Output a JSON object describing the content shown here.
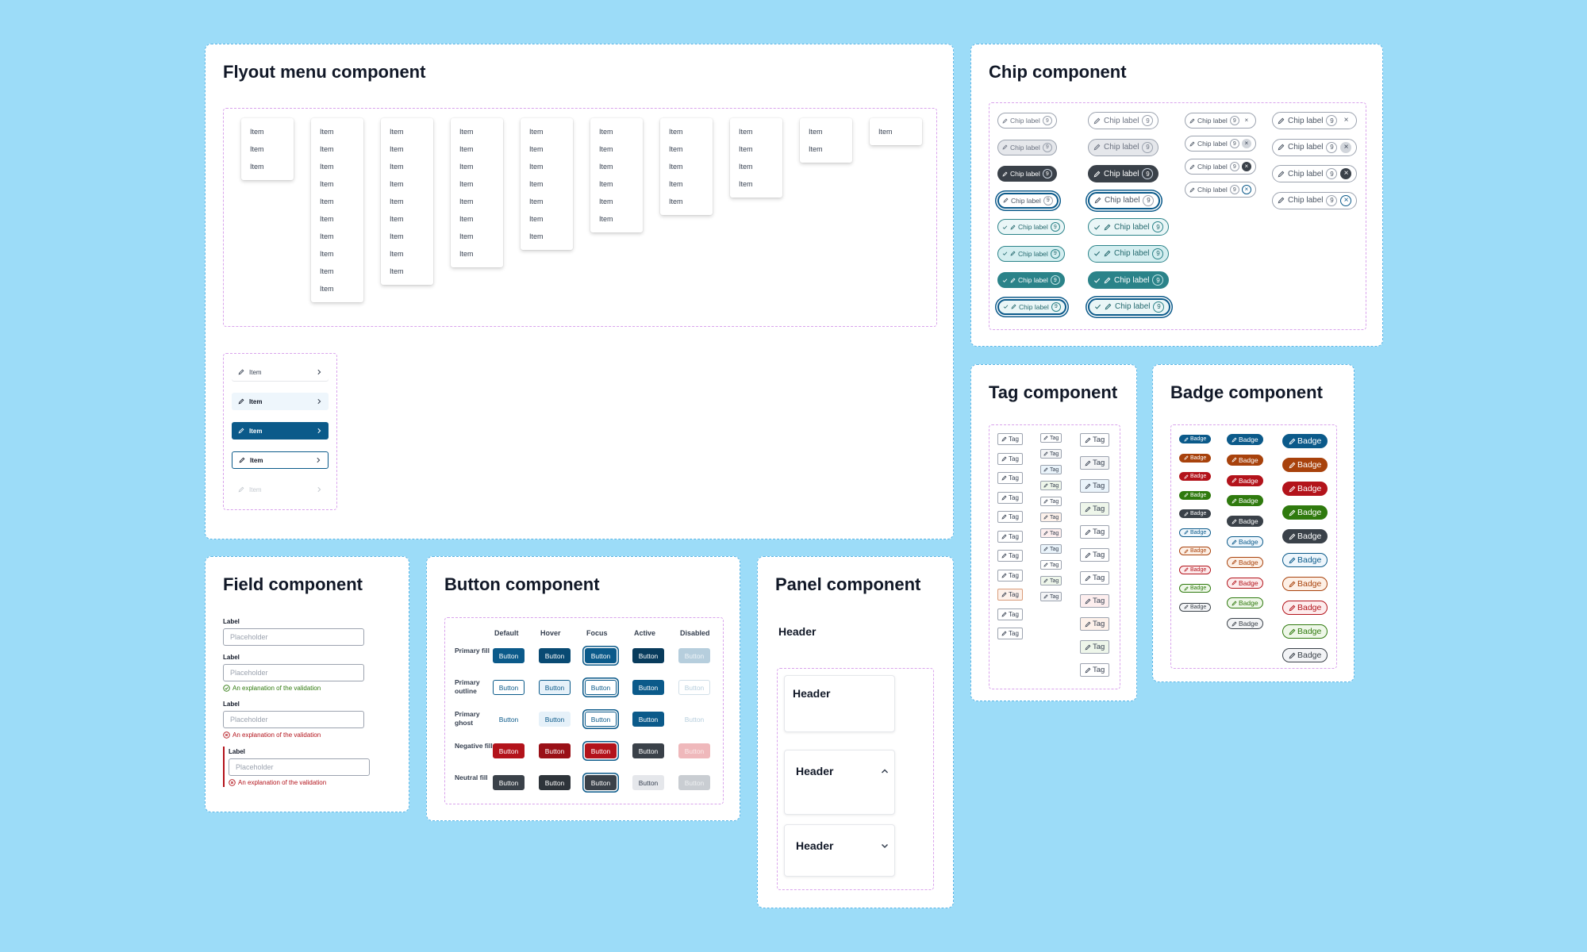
{
  "flyout": {
    "title": "Flyout menu component",
    "item_label": "Item",
    "menu_item_counts": [
      3,
      10,
      9,
      8,
      7,
      6,
      5,
      4,
      2,
      1
    ]
  },
  "list_items": [
    {
      "label": "Item",
      "state": "default"
    },
    {
      "label": "Item",
      "state": "hover"
    },
    {
      "label": "Item",
      "state": "active"
    },
    {
      "label": "Item",
      "state": "focus"
    },
    {
      "label": "Item",
      "state": "disabled"
    }
  ],
  "chip": {
    "title": "Chip component",
    "label": "Chip label",
    "count": "9"
  },
  "tag": {
    "title": "Tag component",
    "label": "Tag"
  },
  "badge": {
    "title": "Badge component",
    "label": "Badge"
  },
  "field": {
    "title": "Field component",
    "label": "Label",
    "placeholder": "Placeholder",
    "validation_message": "An explanation of the validation"
  },
  "button": {
    "title": "Button component",
    "columns": [
      "Default",
      "Hover",
      "Focus",
      "Active",
      "Disabled"
    ],
    "rows": [
      "Primary fill",
      "Primary outline",
      "Primary ghost",
      "Negative fill",
      "Neutral fill"
    ],
    "label": "Button"
  },
  "panel": {
    "title": "Panel component",
    "header_label": "Header"
  },
  "colors": {
    "background": "#9cdcf8",
    "primary": "#0b5a8a",
    "teal": "#2b8389",
    "negative": "#b3131b",
    "neutral": "#3a4149",
    "success": "#2f7a0e",
    "warning": "#a8420c",
    "outline_dashed_blue": "#5cb6e6",
    "outline_dashed_purple": "#d9a3ec"
  },
  "icons": [
    "pencil-icon",
    "chevron-right-icon",
    "check-icon",
    "close-icon",
    "chevron-up-icon",
    "chevron-down-icon",
    "success-icon",
    "error-icon"
  ]
}
